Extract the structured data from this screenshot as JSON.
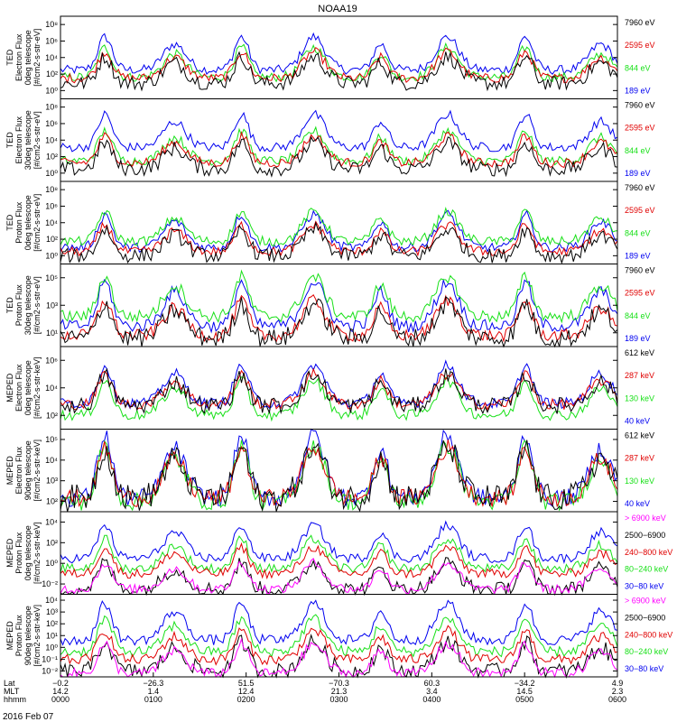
{
  "title": "NOAA19",
  "date_label": "2016 Feb 07",
  "colors": {
    "black": "#000000",
    "red": "#e00000",
    "green": "#18e018",
    "blue": "#0000f0",
    "magenta": "#ff00ff"
  },
  "xaxis": {
    "row_labels": [
      "Lat",
      "MLT",
      "hhmm"
    ],
    "ticks": [
      {
        "lat": "−0.2",
        "mlt": "14.2",
        "hhmm": "0000"
      },
      {
        "lat": "−26.3",
        "mlt": "1.4",
        "hhmm": "0100"
      },
      {
        "lat": "51.5",
        "mlt": "12.4",
        "hhmm": "0200"
      },
      {
        "lat": "−70.3",
        "mlt": "21.3",
        "hhmm": "0300"
      },
      {
        "lat": "60.3",
        "mlt": "3.4",
        "hhmm": "0400"
      },
      {
        "lat": "−34.2",
        "mlt": "14.5",
        "hhmm": "0500"
      },
      {
        "lat": "4.9",
        "mlt": "2.3",
        "hhmm": "0600"
      }
    ]
  },
  "chart_data": [
    {
      "type": "line",
      "instrument": "TED",
      "ylabel_lines": [
        "TED",
        "Electron Flux",
        "0deg telescope",
        "[#/cm2-s-str-eV]"
      ],
      "yticks": [
        "10⁰",
        "10²",
        "10⁴",
        "10⁶",
        "10⁸"
      ],
      "ylog": [
        0,
        8
      ],
      "series": [
        {
          "name": "7960 eV",
          "color": "black",
          "level": 1.5
        },
        {
          "name": "2595 eV",
          "color": "red",
          "level": 2
        },
        {
          "name": "844 eV",
          "color": "green",
          "level": 2.1
        },
        {
          "name": "189 eV",
          "color": "blue",
          "level": 2.8
        }
      ]
    },
    {
      "type": "line",
      "instrument": "TED",
      "ylabel_lines": [
        "TED",
        "Electron Flux",
        "30deg telescope",
        "[#/cm2-s-str-eV]"
      ],
      "yticks": [
        "10⁰",
        "10²",
        "10⁴",
        "10⁶",
        "10⁸"
      ],
      "ylog": [
        0,
        8
      ],
      "series": [
        {
          "name": "7960 eV",
          "color": "black",
          "level": 1.2
        },
        {
          "name": "2595 eV",
          "color": "red",
          "level": 1.8
        },
        {
          "name": "844 eV",
          "color": "green",
          "level": 2.0
        },
        {
          "name": "189 eV",
          "color": "blue",
          "level": 3.3
        }
      ]
    },
    {
      "type": "line",
      "instrument": "TED",
      "ylabel_lines": [
        "TED",
        "Proton Flux",
        "0deg telescope",
        "[#/cm2-s-str-eV]"
      ],
      "yticks": [
        "10⁰",
        "10²",
        "10⁴",
        "10⁶",
        "10⁸"
      ],
      "ylog": [
        0,
        8
      ],
      "series": [
        {
          "name": "7960 eV",
          "color": "black",
          "level": 0.8
        },
        {
          "name": "2595 eV",
          "color": "red",
          "level": 1.2
        },
        {
          "name": "844 eV",
          "color": "green",
          "level": 2.2
        },
        {
          "name": "189 eV",
          "color": "blue",
          "level": 1.6
        }
      ]
    },
    {
      "type": "line",
      "instrument": "TED",
      "ylabel_lines": [
        "TED",
        "Proton Flux",
        "30deg telescope",
        "[#/cm2-s-str-eV]"
      ],
      "yticks": [
        "10¹",
        "10³",
        "10⁵"
      ],
      "ylog": [
        0,
        6
      ],
      "series": [
        {
          "name": "7960 eV",
          "color": "black",
          "level": 0.6
        },
        {
          "name": "2595 eV",
          "color": "red",
          "level": 0.8
        },
        {
          "name": "844 eV",
          "color": "green",
          "level": 2.2
        },
        {
          "name": "189 eV",
          "color": "blue",
          "level": 1.5
        }
      ]
    },
    {
      "type": "line",
      "instrument": "MEPED",
      "ylabel_lines": [
        "MEPED",
        "Electron Flux",
        "0deg telescope",
        "[#/cm2-s-str-keV]"
      ],
      "yticks": [
        "10²",
        "10⁴",
        "10⁶"
      ],
      "ylog": [
        0,
        7
      ],
      "series": [
        {
          "name": "612 keV",
          "color": "black",
          "level": 2.0
        },
        {
          "name": "287 keV",
          "color": "red",
          "level": 2.1
        },
        {
          "name": "130 keV",
          "color": "green",
          "level": 1.2
        },
        {
          "name": "40 keV",
          "color": "blue",
          "level": 2.2
        }
      ]
    },
    {
      "type": "line",
      "instrument": "MEPED",
      "ylabel_lines": [
        "MEPED",
        "Electron Flux",
        "90deg telescope",
        "[#/cm2-s-str-keV]"
      ],
      "yticks": [
        "10²",
        "10³",
        "10⁴",
        "10⁵"
      ],
      "ylog": [
        1.5,
        5.7
      ],
      "series": [
        {
          "name": "612 keV",
          "color": "black",
          "level": 2.2
        },
        {
          "name": "287 keV",
          "color": "red",
          "level": 2.2
        },
        {
          "name": "130 keV",
          "color": "green",
          "level": 2.0
        },
        {
          "name": "40 keV",
          "color": "blue",
          "level": 2.2
        }
      ]
    },
    {
      "type": "line",
      "instrument": "MEPED",
      "ylabel_lines": [
        "MEPED",
        "Proton Flux",
        "0deg telescope",
        "[#/cm2-s-str-keV]"
      ],
      "yticks": [
        "10⁻²",
        "10⁰",
        "10²",
        "10⁴"
      ],
      "ylog": [
        -3,
        5
      ],
      "series": [
        {
          "name": "> 6900 keV",
          "color": "magenta",
          "level": -2.5
        },
        {
          "name": "2500−6900",
          "color": "black",
          "level": -2.5
        },
        {
          "name": "240−800 keV",
          "color": "red",
          "level": -1.0
        },
        {
          "name": "80−240 keV",
          "color": "green",
          "level": -0.5
        },
        {
          "name": "30−80 keV",
          "color": "blue",
          "level": 0.5
        }
      ]
    },
    {
      "type": "line",
      "instrument": "MEPED",
      "ylabel_lines": [
        "MEPED",
        "Proton Flux",
        "90deg telescope",
        "[#/cm2-s-str-keV]"
      ],
      "yticks": [
        "10⁻²",
        "10⁻¹",
        "10⁰",
        "10¹",
        "10²",
        "10³",
        "10⁴"
      ],
      "ylog": [
        -2.5,
        4.7
      ],
      "series": [
        {
          "name": "> 6900 keV",
          "color": "magenta",
          "level": -2.2
        },
        {
          "name": "2500−6900",
          "color": "black",
          "level": -2.0
        },
        {
          "name": "240−800 keV",
          "color": "red",
          "level": -1.0
        },
        {
          "name": "80−240 keV",
          "color": "green",
          "level": -0.3
        },
        {
          "name": "30−80 keV",
          "color": "blue",
          "level": 0.7
        }
      ]
    }
  ]
}
